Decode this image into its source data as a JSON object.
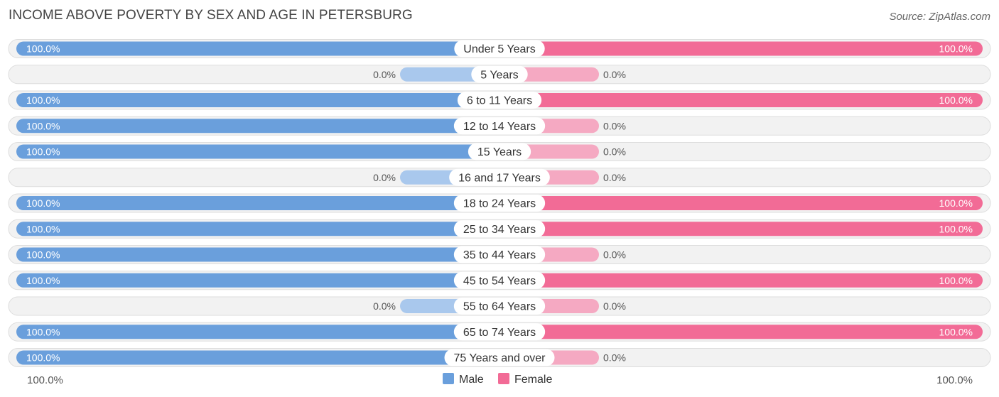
{
  "header": {
    "title": "INCOME ABOVE POVERTY BY SEX AND AGE IN PETERSBURG",
    "source": "Source: ZipAtlas.com"
  },
  "colors": {
    "male_full": "#6a9fdc",
    "male_light": "#a9c8ed",
    "female_full": "#f26b96",
    "female_light": "#f5a9c2",
    "track": "#f2f2f2"
  },
  "chart_data": {
    "type": "bar",
    "orientation": "horizontal-diverging",
    "title": "INCOME ABOVE POVERTY BY SEX AND AGE IN PETERSBURG",
    "categories": [
      "Under 5 Years",
      "5 Years",
      "6 to 11 Years",
      "12 to 14 Years",
      "15 Years",
      "16 and 17 Years",
      "18 to 24 Years",
      "25 to 34 Years",
      "35 to 44 Years",
      "45 to 54 Years",
      "55 to 64 Years",
      "65 to 74 Years",
      "75 Years and over"
    ],
    "series": [
      {
        "name": "Male",
        "values": [
          100,
          0,
          100,
          100,
          100,
          0,
          100,
          100,
          100,
          100,
          0,
          100,
          100
        ],
        "labels": [
          "100.0%",
          "0.0%",
          "100.0%",
          "100.0%",
          "100.0%",
          "0.0%",
          "100.0%",
          "100.0%",
          "100.0%",
          "100.0%",
          "0.0%",
          "100.0%",
          "100.0%"
        ]
      },
      {
        "name": "Female",
        "values": [
          100,
          0,
          100,
          0,
          0,
          0,
          100,
          100,
          0,
          100,
          0,
          100,
          0
        ],
        "labels": [
          "100.0%",
          "0.0%",
          "100.0%",
          "0.0%",
          "0.0%",
          "0.0%",
          "100.0%",
          "100.0%",
          "0.0%",
          "100.0%",
          "0.0%",
          "100.0%",
          "0.0%"
        ]
      }
    ],
    "xlim": [
      0,
      100
    ],
    "axis_left_label": "100.0%",
    "axis_right_label": "100.0%",
    "legend": {
      "position": "bottom-center",
      "entries": [
        "Male",
        "Female"
      ]
    }
  }
}
